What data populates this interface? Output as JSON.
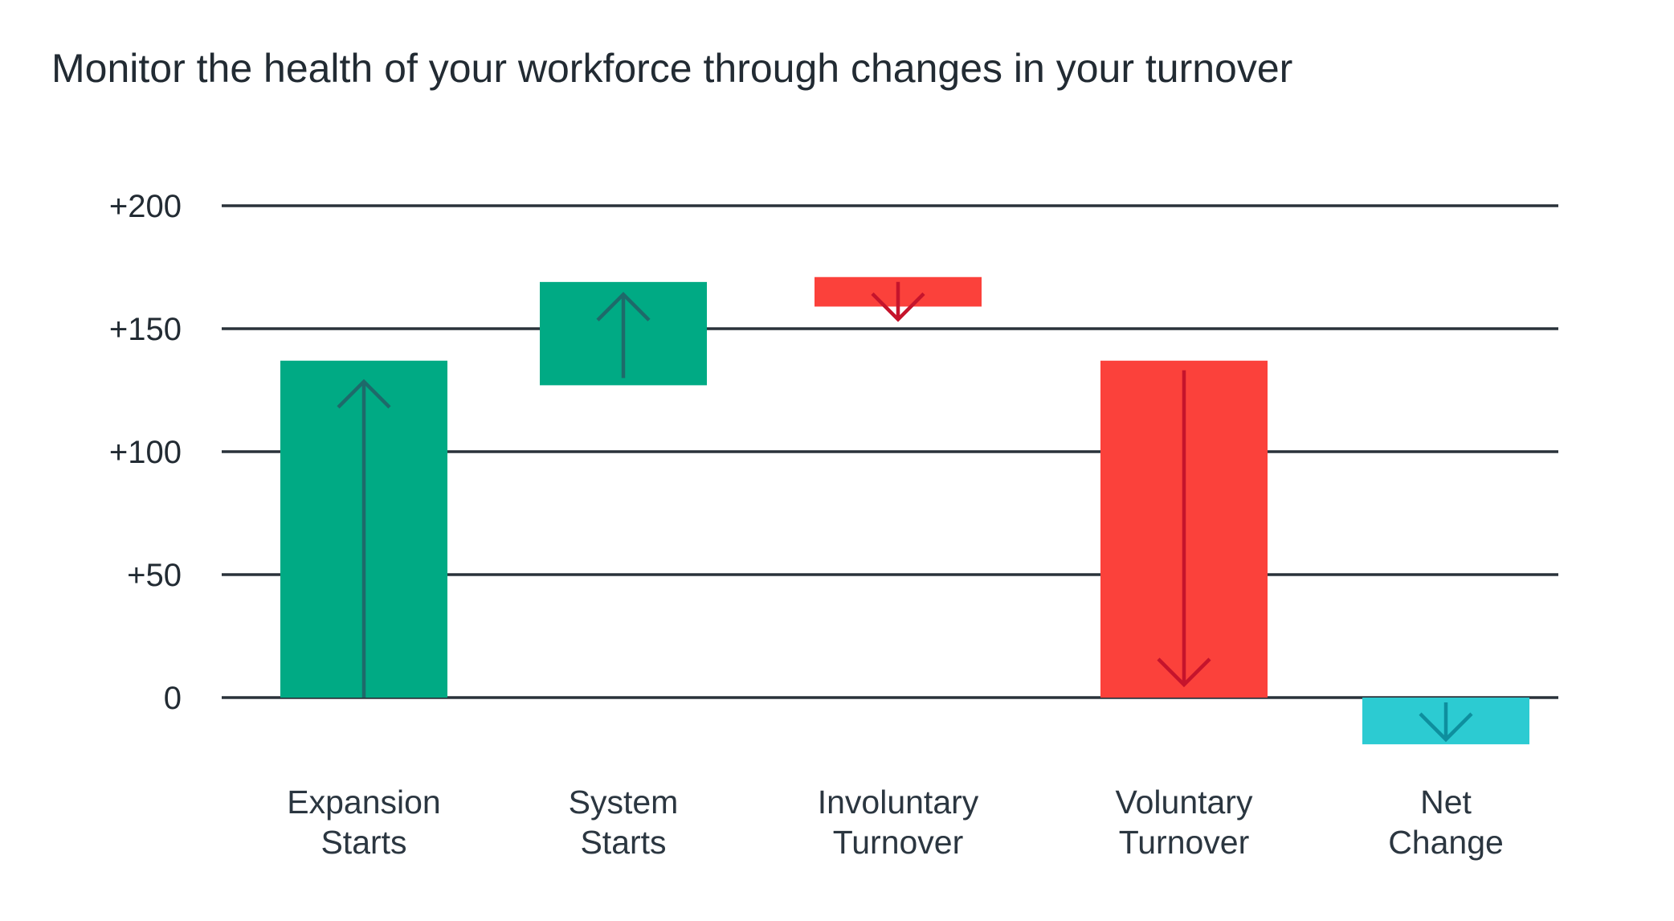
{
  "chart_data": {
    "type": "bar",
    "subtype": "waterfall",
    "title": "Monitor the health of your workforce through changes in your turnover",
    "xlabel": "",
    "ylabel": "",
    "ylim": [
      -25,
      200
    ],
    "yticks": [
      200,
      150,
      100,
      50,
      0
    ],
    "ytick_labels": [
      "+200",
      "+150",
      "+100",
      "+50",
      "0"
    ],
    "grid": true,
    "categories": [
      {
        "lines": [
          "Expansion",
          "Starts"
        ]
      },
      {
        "lines": [
          "System",
          "Starts"
        ]
      },
      {
        "lines": [
          "Involuntary",
          "Turnover"
        ]
      },
      {
        "lines": [
          "Voluntary",
          "Turnover"
        ]
      },
      {
        "lines": [
          "Net",
          "Change"
        ]
      }
    ],
    "bars": [
      {
        "start": 0,
        "end": 137,
        "direction": "up",
        "color": "#00aa84",
        "arrow_color": "#1e6a6a"
      },
      {
        "start": 127,
        "end": 169,
        "direction": "up",
        "color": "#00aa84",
        "arrow_color": "#1e6a6a"
      },
      {
        "start": 171,
        "end": 159,
        "direction": "down",
        "color": "#fb413b",
        "arrow_color": "#c5142c"
      },
      {
        "start": 137,
        "end": 0,
        "direction": "down",
        "color": "#fb413b",
        "arrow_color": "#c5142c"
      },
      {
        "start": 0,
        "end": -19,
        "direction": "down",
        "color": "#2ccbd2",
        "arrow_color": "#0e8f9e"
      }
    ],
    "gridline_color": "#2a323a"
  }
}
